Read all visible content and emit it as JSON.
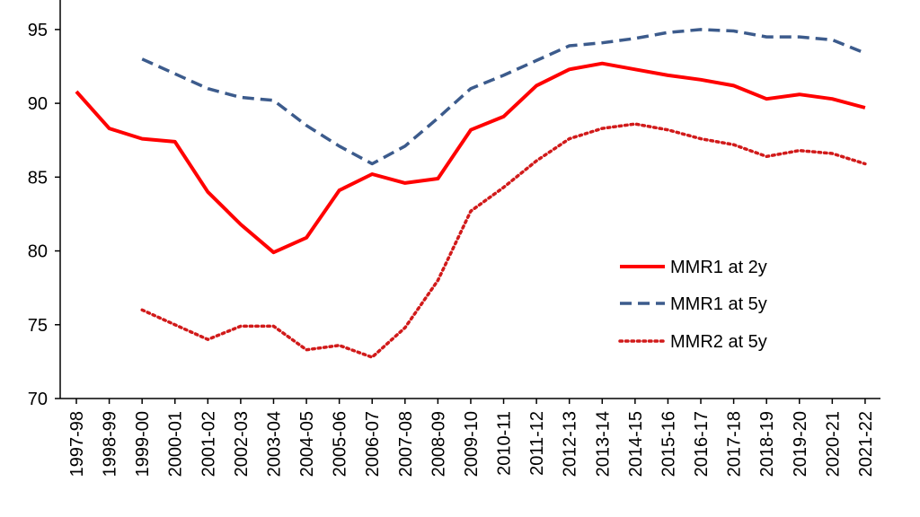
{
  "chart_data": {
    "type": "line",
    "title": "",
    "xlabel": "",
    "ylabel": "",
    "ylim": [
      70,
      97
    ],
    "yticks": [
      70,
      75,
      80,
      85,
      90,
      95
    ],
    "categories": [
      "1997-98",
      "1998-99",
      "1999-00",
      "2000-01",
      "2001-02",
      "2002-03",
      "2003-04",
      "2004-05",
      "2005-06",
      "2006-07",
      "2007-08",
      "2008-09",
      "2009-10",
      "2010-11",
      "2011-12",
      "2012-13",
      "2013-14",
      "2014-15",
      "2015-16",
      "2016-17",
      "2017-18",
      "2018-19",
      "2019-20",
      "2020-21",
      "2021-22"
    ],
    "series": [
      {
        "name": "MMR1 at 2y",
        "color": "#ff0000",
        "style": "solid",
        "values": [
          90.8,
          88.3,
          87.6,
          87.4,
          84.0,
          81.8,
          79.9,
          80.9,
          84.1,
          85.2,
          84.6,
          84.9,
          88.2,
          89.1,
          91.2,
          92.3,
          92.7,
          92.3,
          91.9,
          91.6,
          91.2,
          90.3,
          90.6,
          90.3,
          89.7
        ]
      },
      {
        "name": "MMR1 at 5y",
        "color": "#3c5b8c",
        "style": "dashed",
        "values": [
          null,
          null,
          93.0,
          92.0,
          91.0,
          90.4,
          90.2,
          88.5,
          87.1,
          85.9,
          87.1,
          89.0,
          91.0,
          91.9,
          92.9,
          93.9,
          94.1,
          94.4,
          94.8,
          95.0,
          94.9,
          94.5,
          94.5,
          94.3,
          93.4
        ]
      },
      {
        "name": "MMR2 at 5y",
        "color": "#d11a1a",
        "style": "dotted",
        "values": [
          null,
          null,
          76.0,
          75.0,
          74.0,
          74.9,
          74.9,
          73.3,
          73.6,
          72.8,
          74.8,
          78.0,
          82.7,
          84.3,
          86.1,
          87.6,
          88.3,
          88.6,
          88.2,
          87.6,
          87.2,
          86.4,
          86.8,
          86.6,
          85.9
        ]
      }
    ]
  }
}
